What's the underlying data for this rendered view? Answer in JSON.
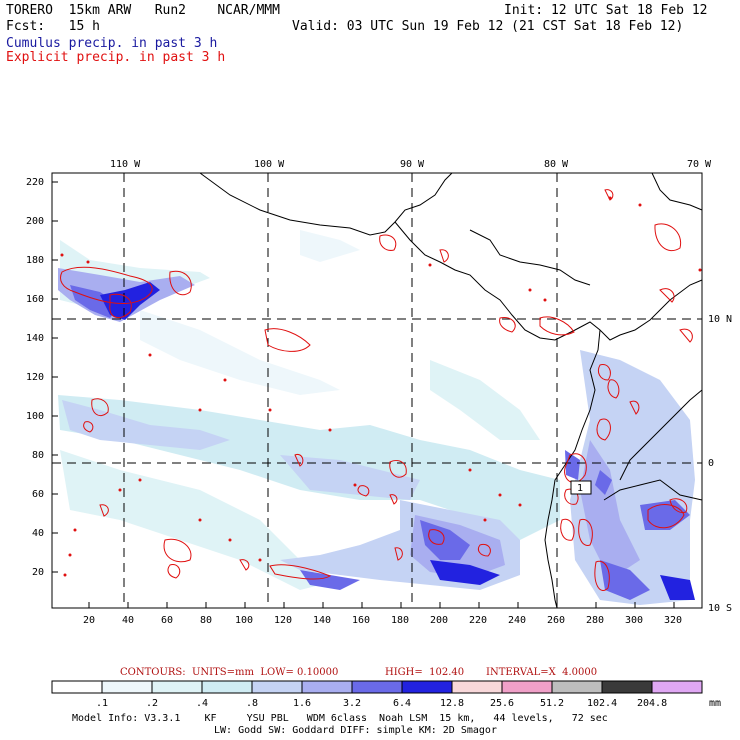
{
  "header": {
    "model": "TORERO  15km ARW   Run2    NCAR/MMM",
    "init": "Init: 12 UTC Sat 18 Feb 12",
    "fcst": "Fcst:   15 h",
    "valid": "Valid: 03 UTC Sun 19 Feb 12 (21 CST Sat 18 Feb 12)",
    "cumulus": "Cumulus precip. in past 3 h",
    "explicit": "Explicit precip. in past 3 h"
  },
  "colors": {
    "cumulus_title": "#1a1aa0",
    "explicit_title": "#e01010",
    "contour": "#e01010",
    "contour_info": "#b01010"
  },
  "top_axis": [
    "110 W",
    "100 W",
    "90 W",
    "80 W",
    "70 W"
  ],
  "right_axis": [
    "10 N",
    "0",
    "10 S"
  ],
  "y_ticks": [
    "220",
    "200",
    "180",
    "160",
    "140",
    "120",
    "100",
    "80",
    "60",
    "40",
    "20"
  ],
  "x_ticks": [
    "20",
    "40",
    "60",
    "80",
    "100",
    "120",
    "140",
    "160",
    "180",
    "200",
    "220",
    "240",
    "260",
    "280",
    "300",
    "320"
  ],
  "contour_info": {
    "units": "CONTOURS:  UNITS=mm  LOW= 0.10000",
    "high": "HIGH=  102.40",
    "interval": "INTERVAL=X  4.0000"
  },
  "colorbar": {
    "labels": [
      ".1",
      ".2",
      ".4",
      ".8",
      "1.6",
      "3.2",
      "6.4",
      "12.8",
      "25.6",
      "51.2",
      "102.4",
      "204.8"
    ],
    "unit": "mm",
    "colors": [
      "#ffffff",
      "#eef7fb",
      "#dff3f6",
      "#d0ecf3",
      "#c5d3f4",
      "#a9aef0",
      "#6a6ae8",
      "#2222e0",
      "#f8d8da",
      "#f0a0c8",
      "#bdbdbd",
      "#3a3a3a",
      "#e0a8f4"
    ]
  },
  "footer": {
    "line1": "Model Info: V3.3.1    KF     YSU PBL   WDM 6class  Noah LSM  15 km,   44 levels,   72 sec",
    "line2": "LW: Godd SW: Goddard DIFF: simple KM: 2D Smagor"
  },
  "map_labels": [
    "1"
  ]
}
